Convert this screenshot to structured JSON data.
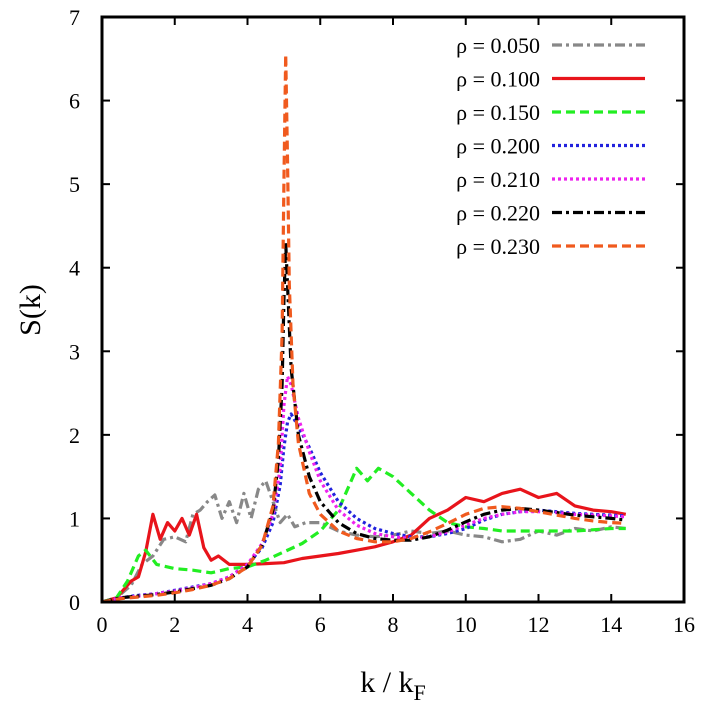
{
  "chart_data": {
    "type": "line",
    "title": "",
    "xlabel": "k / k",
    "xlabel_sub": "F",
    "ylabel": "S(k)",
    "xlim": [
      0,
      16
    ],
    "ylim": [
      0,
      7
    ],
    "xticks": [
      "0",
      "2",
      "4",
      "6",
      "8",
      "10",
      "12",
      "14",
      "16"
    ],
    "yticks": [
      "0",
      "1",
      "2",
      "3",
      "4",
      "5",
      "6",
      "7"
    ],
    "grid": false,
    "legend_position": "top-right",
    "series": [
      {
        "name": "ρ = 0.050",
        "color": "#888888",
        "dash": "dash-dot",
        "points": [
          [
            0,
            0
          ],
          [
            0.4,
            0.05
          ],
          [
            0.8,
            0.2
          ],
          [
            1.1,
            0.45
          ],
          [
            1.4,
            0.55
          ],
          [
            1.7,
            0.75
          ],
          [
            2.0,
            0.78
          ],
          [
            2.3,
            0.72
          ],
          [
            2.5,
            1.05
          ],
          [
            2.7,
            1.1
          ],
          [
            2.9,
            1.2
          ],
          [
            3.1,
            1.28
          ],
          [
            3.3,
            1.0
          ],
          [
            3.5,
            1.2
          ],
          [
            3.7,
            0.95
          ],
          [
            3.9,
            1.3
          ],
          [
            4.1,
            1.0
          ],
          [
            4.3,
            1.35
          ],
          [
            4.5,
            1.45
          ],
          [
            4.7,
            1.2
          ],
          [
            4.9,
            0.95
          ],
          [
            5.1,
            1.05
          ],
          [
            5.3,
            0.9
          ],
          [
            5.6,
            0.95
          ],
          [
            6.0,
            0.95
          ],
          [
            6.5,
            0.85
          ],
          [
            7.0,
            0.8
          ],
          [
            7.5,
            0.78
          ],
          [
            8.0,
            0.8
          ],
          [
            8.5,
            0.85
          ],
          [
            9.0,
            0.82
          ],
          [
            9.5,
            0.85
          ],
          [
            10.0,
            0.8
          ],
          [
            10.5,
            0.78
          ],
          [
            11.0,
            0.72
          ],
          [
            11.5,
            0.75
          ],
          [
            12.0,
            0.85
          ],
          [
            12.5,
            0.8
          ],
          [
            13.0,
            0.88
          ],
          [
            13.5,
            0.85
          ],
          [
            14.0,
            0.9
          ],
          [
            14.4,
            0.88
          ]
        ]
      },
      {
        "name": "ρ = 0.100",
        "color": "#e8141b",
        "dash": "solid",
        "points": [
          [
            0,
            0
          ],
          [
            0.4,
            0.05
          ],
          [
            0.8,
            0.25
          ],
          [
            1.0,
            0.3
          ],
          [
            1.2,
            0.6
          ],
          [
            1.4,
            1.05
          ],
          [
            1.6,
            0.75
          ],
          [
            1.8,
            0.95
          ],
          [
            2.0,
            0.85
          ],
          [
            2.2,
            1.0
          ],
          [
            2.4,
            0.8
          ],
          [
            2.6,
            1.05
          ],
          [
            2.8,
            0.65
          ],
          [
            3.0,
            0.5
          ],
          [
            3.2,
            0.55
          ],
          [
            3.5,
            0.45
          ],
          [
            4.0,
            0.45
          ],
          [
            4.5,
            0.46
          ],
          [
            5.0,
            0.47
          ],
          [
            5.5,
            0.52
          ],
          [
            6.0,
            0.55
          ],
          [
            6.5,
            0.58
          ],
          [
            7.0,
            0.62
          ],
          [
            7.5,
            0.66
          ],
          [
            8.0,
            0.72
          ],
          [
            8.5,
            0.8
          ],
          [
            9.0,
            1.0
          ],
          [
            9.5,
            1.1
          ],
          [
            10.0,
            1.25
          ],
          [
            10.5,
            1.2
          ],
          [
            11.0,
            1.3
          ],
          [
            11.5,
            1.35
          ],
          [
            12.0,
            1.25
          ],
          [
            12.5,
            1.3
          ],
          [
            13.0,
            1.15
          ],
          [
            13.5,
            1.1
          ],
          [
            14.0,
            1.08
          ],
          [
            14.4,
            1.05
          ]
        ]
      },
      {
        "name": "ρ = 0.150",
        "color": "#22ee22",
        "dash": "dashed",
        "points": [
          [
            0,
            0
          ],
          [
            0.4,
            0.05
          ],
          [
            0.7,
            0.25
          ],
          [
            1.0,
            0.55
          ],
          [
            1.2,
            0.62
          ],
          [
            1.5,
            0.45
          ],
          [
            2.0,
            0.4
          ],
          [
            2.5,
            0.38
          ],
          [
            3.0,
            0.35
          ],
          [
            3.5,
            0.4
          ],
          [
            4.0,
            0.42
          ],
          [
            4.5,
            0.5
          ],
          [
            5.0,
            0.6
          ],
          [
            5.5,
            0.7
          ],
          [
            6.0,
            0.85
          ],
          [
            6.5,
            1.1
          ],
          [
            6.8,
            1.4
          ],
          [
            7.0,
            1.6
          ],
          [
            7.3,
            1.45
          ],
          [
            7.6,
            1.6
          ],
          [
            8.0,
            1.5
          ],
          [
            8.5,
            1.3
          ],
          [
            9.0,
            1.1
          ],
          [
            9.5,
            0.95
          ],
          [
            10.0,
            0.9
          ],
          [
            10.5,
            0.88
          ],
          [
            11.0,
            0.85
          ],
          [
            12.0,
            0.85
          ],
          [
            13.0,
            0.85
          ],
          [
            14.0,
            0.88
          ],
          [
            14.4,
            0.88
          ]
        ]
      },
      {
        "name": "ρ = 0.200",
        "color": "#2222dd",
        "dash": "dotted",
        "points": [
          [
            0,
            0
          ],
          [
            0.5,
            0.05
          ],
          [
            1.0,
            0.08
          ],
          [
            1.5,
            0.1
          ],
          [
            2.0,
            0.14
          ],
          [
            2.5,
            0.18
          ],
          [
            3.0,
            0.22
          ],
          [
            3.5,
            0.3
          ],
          [
            4.0,
            0.45
          ],
          [
            4.4,
            0.65
          ],
          [
            4.7,
            0.95
          ],
          [
            4.9,
            1.4
          ],
          [
            5.0,
            1.85
          ],
          [
            5.1,
            2.15
          ],
          [
            5.2,
            2.25
          ],
          [
            5.4,
            2.1
          ],
          [
            5.7,
            1.85
          ],
          [
            6.0,
            1.55
          ],
          [
            6.5,
            1.2
          ],
          [
            7.0,
            1.0
          ],
          [
            7.5,
            0.88
          ],
          [
            8.0,
            0.82
          ],
          [
            8.5,
            0.78
          ],
          [
            9.0,
            0.78
          ],
          [
            9.5,
            0.82
          ],
          [
            10.0,
            0.88
          ],
          [
            10.5,
            0.98
          ],
          [
            11.0,
            1.05
          ],
          [
            11.5,
            1.08
          ],
          [
            12.0,
            1.1
          ],
          [
            12.5,
            1.08
          ],
          [
            13.0,
            1.06
          ],
          [
            13.5,
            1.05
          ],
          [
            14.0,
            1.04
          ],
          [
            14.4,
            1.03
          ]
        ]
      },
      {
        "name": "ρ = 0.210",
        "color": "#ee22ee",
        "dash": "dotted",
        "points": [
          [
            0,
            0
          ],
          [
            0.5,
            0.05
          ],
          [
            1.0,
            0.07
          ],
          [
            1.5,
            0.1
          ],
          [
            2.0,
            0.13
          ],
          [
            2.5,
            0.17
          ],
          [
            3.0,
            0.22
          ],
          [
            3.5,
            0.3
          ],
          [
            4.0,
            0.45
          ],
          [
            4.4,
            0.7
          ],
          [
            4.7,
            1.05
          ],
          [
            4.9,
            1.6
          ],
          [
            5.0,
            2.35
          ],
          [
            5.1,
            2.7
          ],
          [
            5.2,
            2.6
          ],
          [
            5.4,
            2.2
          ],
          [
            5.7,
            1.8
          ],
          [
            6.0,
            1.45
          ],
          [
            6.5,
            1.1
          ],
          [
            7.0,
            0.92
          ],
          [
            7.5,
            0.82
          ],
          [
            8.0,
            0.78
          ],
          [
            8.5,
            0.76
          ],
          [
            9.0,
            0.78
          ],
          [
            9.5,
            0.84
          ],
          [
            10.0,
            0.92
          ],
          [
            10.5,
            1.0
          ],
          [
            11.0,
            1.05
          ],
          [
            11.5,
            1.08
          ],
          [
            12.0,
            1.08
          ],
          [
            12.5,
            1.07
          ],
          [
            13.0,
            1.05
          ],
          [
            13.5,
            1.04
          ],
          [
            14.0,
            1.03
          ],
          [
            14.4,
            1.02
          ]
        ]
      },
      {
        "name": "ρ = 0.220",
        "color": "#000000",
        "dash": "dash-dot",
        "points": [
          [
            0,
            0
          ],
          [
            0.5,
            0.05
          ],
          [
            1.0,
            0.07
          ],
          [
            1.5,
            0.09
          ],
          [
            2.0,
            0.12
          ],
          [
            2.5,
            0.16
          ],
          [
            3.0,
            0.2
          ],
          [
            3.5,
            0.28
          ],
          [
            4.0,
            0.42
          ],
          [
            4.4,
            0.68
          ],
          [
            4.7,
            1.1
          ],
          [
            4.85,
            1.7
          ],
          [
            4.95,
            2.6
          ],
          [
            5.0,
            3.6
          ],
          [
            5.05,
            4.3
          ],
          [
            5.1,
            3.8
          ],
          [
            5.2,
            2.8
          ],
          [
            5.4,
            2.0
          ],
          [
            5.7,
            1.5
          ],
          [
            6.0,
            1.2
          ],
          [
            6.5,
            0.95
          ],
          [
            7.0,
            0.82
          ],
          [
            7.5,
            0.76
          ],
          [
            8.0,
            0.74
          ],
          [
            8.5,
            0.74
          ],
          [
            9.0,
            0.78
          ],
          [
            9.5,
            0.86
          ],
          [
            10.0,
            0.96
          ],
          [
            10.5,
            1.05
          ],
          [
            11.0,
            1.1
          ],
          [
            11.5,
            1.12
          ],
          [
            12.0,
            1.1
          ],
          [
            12.5,
            1.07
          ],
          [
            13.0,
            1.04
          ],
          [
            13.5,
            1.02
          ],
          [
            14.0,
            1.0
          ],
          [
            14.4,
            0.98
          ]
        ]
      },
      {
        "name": "ρ = 0.230",
        "color": "#f05a1e",
        "dash": "dashed",
        "points": [
          [
            0,
            0
          ],
          [
            0.5,
            0.04
          ],
          [
            1.0,
            0.06
          ],
          [
            1.5,
            0.08
          ],
          [
            2.0,
            0.11
          ],
          [
            2.5,
            0.15
          ],
          [
            3.0,
            0.2
          ],
          [
            3.5,
            0.28
          ],
          [
            4.0,
            0.42
          ],
          [
            4.4,
            0.68
          ],
          [
            4.7,
            1.15
          ],
          [
            4.85,
            1.9
          ],
          [
            4.95,
            3.2
          ],
          [
            5.0,
            5.0
          ],
          [
            5.05,
            6.55
          ],
          [
            5.1,
            5.3
          ],
          [
            5.15,
            3.8
          ],
          [
            5.25,
            2.6
          ],
          [
            5.4,
            1.9
          ],
          [
            5.7,
            1.3
          ],
          [
            6.0,
            1.05
          ],
          [
            6.5,
            0.85
          ],
          [
            7.0,
            0.76
          ],
          [
            7.5,
            0.72
          ],
          [
            8.0,
            0.72
          ],
          [
            8.5,
            0.76
          ],
          [
            9.0,
            0.84
          ],
          [
            9.5,
            0.94
          ],
          [
            10.0,
            1.05
          ],
          [
            10.5,
            1.12
          ],
          [
            11.0,
            1.14
          ],
          [
            11.5,
            1.12
          ],
          [
            12.0,
            1.08
          ],
          [
            12.5,
            1.04
          ],
          [
            13.0,
            1.0
          ],
          [
            13.5,
            0.97
          ],
          [
            14.0,
            0.95
          ],
          [
            14.4,
            0.94
          ]
        ]
      }
    ]
  }
}
